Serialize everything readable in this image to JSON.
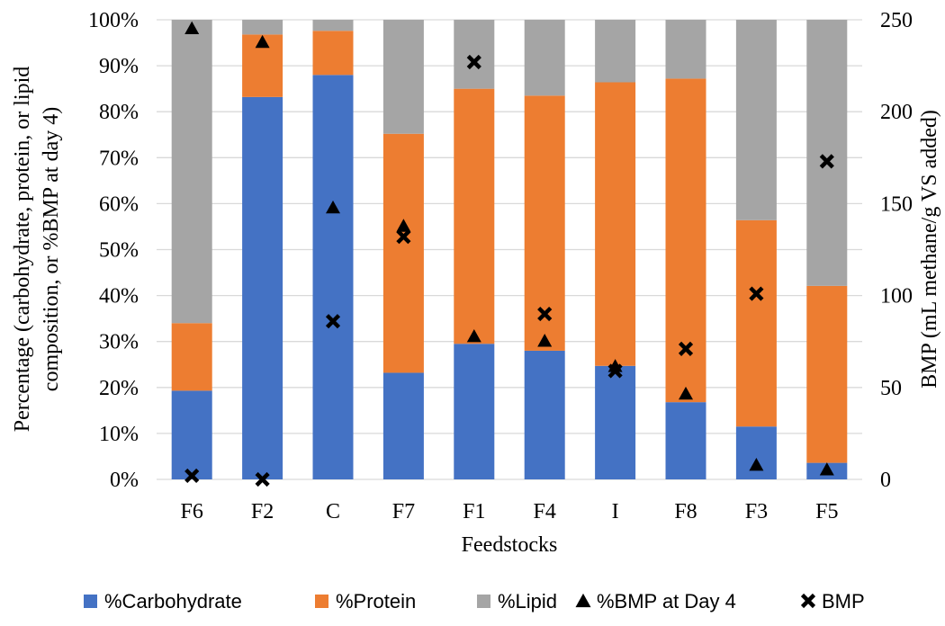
{
  "chart_data": {
    "type": "bar",
    "subtype": "stacked-percent with markers on secondary axis",
    "title": "",
    "xlabel": "Feedstocks",
    "ylabel_lines": [
      "Percentage (carbohydrate, protein, or lipid",
      "composition, or %BMP at day 4)"
    ],
    "y2label": "BMP (mL methane/g VS added)",
    "categories": [
      "F6",
      "F2",
      "C",
      "F7",
      "F1",
      "F4",
      "I",
      "F8",
      "F3",
      "F5"
    ],
    "ylim": [
      0,
      100
    ],
    "y_ticks": [
      "0%",
      "10%",
      "20%",
      "30%",
      "40%",
      "50%",
      "60%",
      "70%",
      "80%",
      "90%",
      "100%"
    ],
    "y2lim": [
      0,
      250
    ],
    "y2_ticks": [
      "0",
      "50",
      "100",
      "150",
      "200",
      "250"
    ],
    "grid": true,
    "legend_position": "bottom",
    "series": [
      {
        "name": "%Carbohydrate",
        "kind": "bar",
        "color": "#4472c4",
        "values": [
          19.3,
          83.2,
          88.0,
          23.2,
          29.5,
          28.0,
          24.7,
          16.8,
          11.5,
          3.6
        ]
      },
      {
        "name": "%Protein",
        "kind": "bar",
        "color": "#ed7d31",
        "values": [
          14.7,
          13.6,
          9.6,
          52.0,
          55.5,
          55.5,
          61.7,
          70.4,
          44.9,
          38.5
        ]
      },
      {
        "name": "%Lipid",
        "kind": "bar",
        "color": "#a5a5a5",
        "values": [
          66.0,
          3.2,
          2.4,
          24.8,
          15.0,
          16.5,
          13.6,
          12.8,
          43.6,
          57.9
        ]
      },
      {
        "name": "%BMP at Day 4",
        "kind": "marker",
        "marker": "triangle",
        "axis": "y",
        "values": [
          98,
          95,
          59,
          55,
          31,
          30,
          24.5,
          18.5,
          3,
          2
        ]
      },
      {
        "name": "BMP",
        "kind": "marker",
        "marker": "cross",
        "axis": "y2",
        "values": [
          2,
          0,
          86,
          132,
          227,
          90,
          59,
          71,
          101,
          173
        ]
      }
    ]
  }
}
